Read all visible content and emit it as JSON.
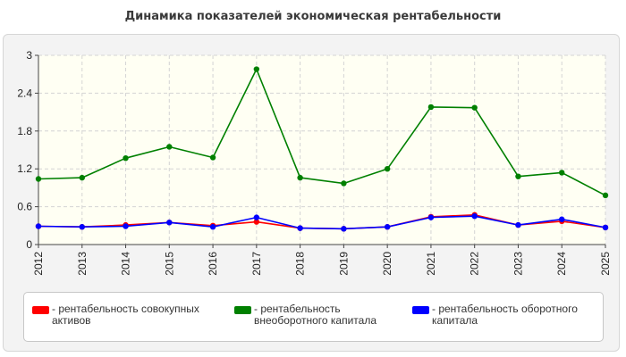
{
  "chart_data": {
    "type": "line",
    "title": "Динамика показателей экономическая рентабельности",
    "xlabel": "",
    "ylabel": "",
    "categories": [
      "2012",
      "2013",
      "2014",
      "2015",
      "2016",
      "2017",
      "2018",
      "2019",
      "2020",
      "2021",
      "2022",
      "2023",
      "2024",
      "2025"
    ],
    "ylim": [
      0,
      3
    ],
    "yticks": [
      "0",
      "0.6",
      "1.2",
      "1.8",
      "2.4",
      "3"
    ],
    "grid": true,
    "legend_position": "bottom",
    "series": [
      {
        "name": "- рентабельность совокупных активов",
        "color": "#ff0000",
        "values": [
          0.29,
          0.28,
          0.31,
          0.35,
          0.3,
          0.36,
          0.26,
          0.25,
          0.28,
          0.44,
          0.47,
          0.31,
          0.37,
          0.27
        ]
      },
      {
        "name": "- рентабельность внеоборотного капитала",
        "color": "#008000",
        "values": [
          1.04,
          1.06,
          1.37,
          1.55,
          1.38,
          2.78,
          1.06,
          0.97,
          1.2,
          2.18,
          2.17,
          1.08,
          1.14,
          0.78
        ]
      },
      {
        "name": "- рентабельность оборотного капитала",
        "color": "#0000ff",
        "values": [
          0.29,
          0.28,
          0.29,
          0.35,
          0.28,
          0.43,
          0.26,
          0.25,
          0.28,
          0.43,
          0.45,
          0.31,
          0.4,
          0.27
        ]
      }
    ]
  }
}
